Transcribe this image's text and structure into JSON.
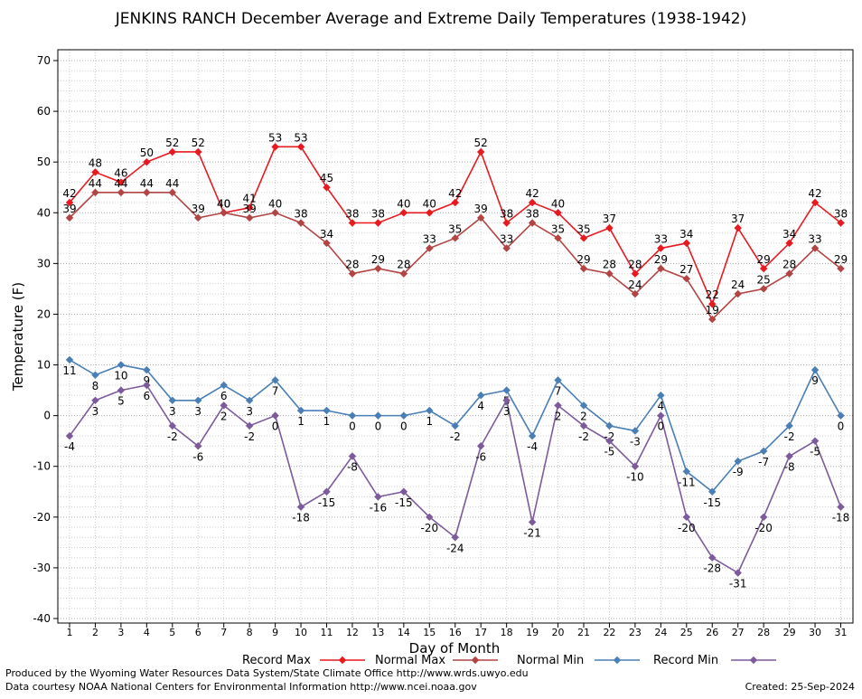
{
  "chart_data": {
    "type": "line",
    "title": "JENKINS RANCH December Average and Extreme Daily Temperatures (1938-1942)",
    "xlabel": "Day of Month",
    "ylabel": "Temperature (F)",
    "ylim": [
      -40,
      70
    ],
    "yticks": [
      -40,
      -30,
      -20,
      -10,
      0,
      10,
      20,
      30,
      40,
      50,
      60,
      70
    ],
    "grid": true,
    "legend_position": "bottom",
    "categories": [
      "1",
      "2",
      "3",
      "4",
      "5",
      "6",
      "7",
      "8",
      "9",
      "10",
      "11",
      "12",
      "13",
      "14",
      "15",
      "16",
      "17",
      "18",
      "19",
      "20",
      "21",
      "22",
      "23",
      "24",
      "25",
      "26",
      "27",
      "28",
      "29",
      "30",
      "31"
    ],
    "series": [
      {
        "name": "Record Max",
        "color": "#e8191f",
        "label_side": "above",
        "values": [
          42,
          48,
          46,
          50,
          52,
          52,
          40,
          41,
          53,
          53,
          45,
          38,
          38,
          40,
          40,
          42,
          52,
          38,
          42,
          40,
          35,
          37,
          28,
          33,
          34,
          22,
          37,
          29,
          34,
          42,
          38
        ]
      },
      {
        "name": "Normal Max",
        "color": "#b24444",
        "label_side": "above",
        "values": [
          39,
          44,
          44,
          44,
          44,
          39,
          40,
          39,
          40,
          38,
          34,
          28,
          29,
          28,
          33,
          35,
          39,
          33,
          38,
          35,
          29,
          28,
          24,
          29,
          27,
          19,
          24,
          25,
          28,
          33,
          29
        ]
      },
      {
        "name": "Normal Min",
        "color": "#4a7fb5",
        "label_side": "below",
        "values": [
          11,
          8,
          10,
          9,
          3,
          3,
          6,
          3,
          7,
          1,
          1,
          0,
          0,
          0,
          1,
          -2,
          4,
          5,
          -4,
          7,
          2,
          -2,
          -3,
          4,
          -11,
          -15,
          -9,
          -7,
          -2,
          9,
          0
        ]
      },
      {
        "name": "Record Min",
        "color": "#7c5a9c",
        "label_side": "below",
        "values": [
          -4,
          3,
          5,
          6,
          -2,
          -6,
          2,
          -2,
          0,
          -18,
          -15,
          -8,
          -16,
          -15,
          -20,
          -24,
          -6,
          3,
          -21,
          2,
          -2,
          -5,
          -10,
          0,
          -20,
          -28,
          -31,
          -20,
          -8,
          -5,
          -18
        ]
      }
    ]
  },
  "footer": {
    "produced_by": "Produced by the Wyoming Water Resources Data System/State Climate Office http://www.wrds.uwyo.edu",
    "courtesy": "Data courtesy NOAA National Centers for Environmental Information http://www.ncei.noaa.gov",
    "created": "Created:  25-Sep-2024"
  }
}
